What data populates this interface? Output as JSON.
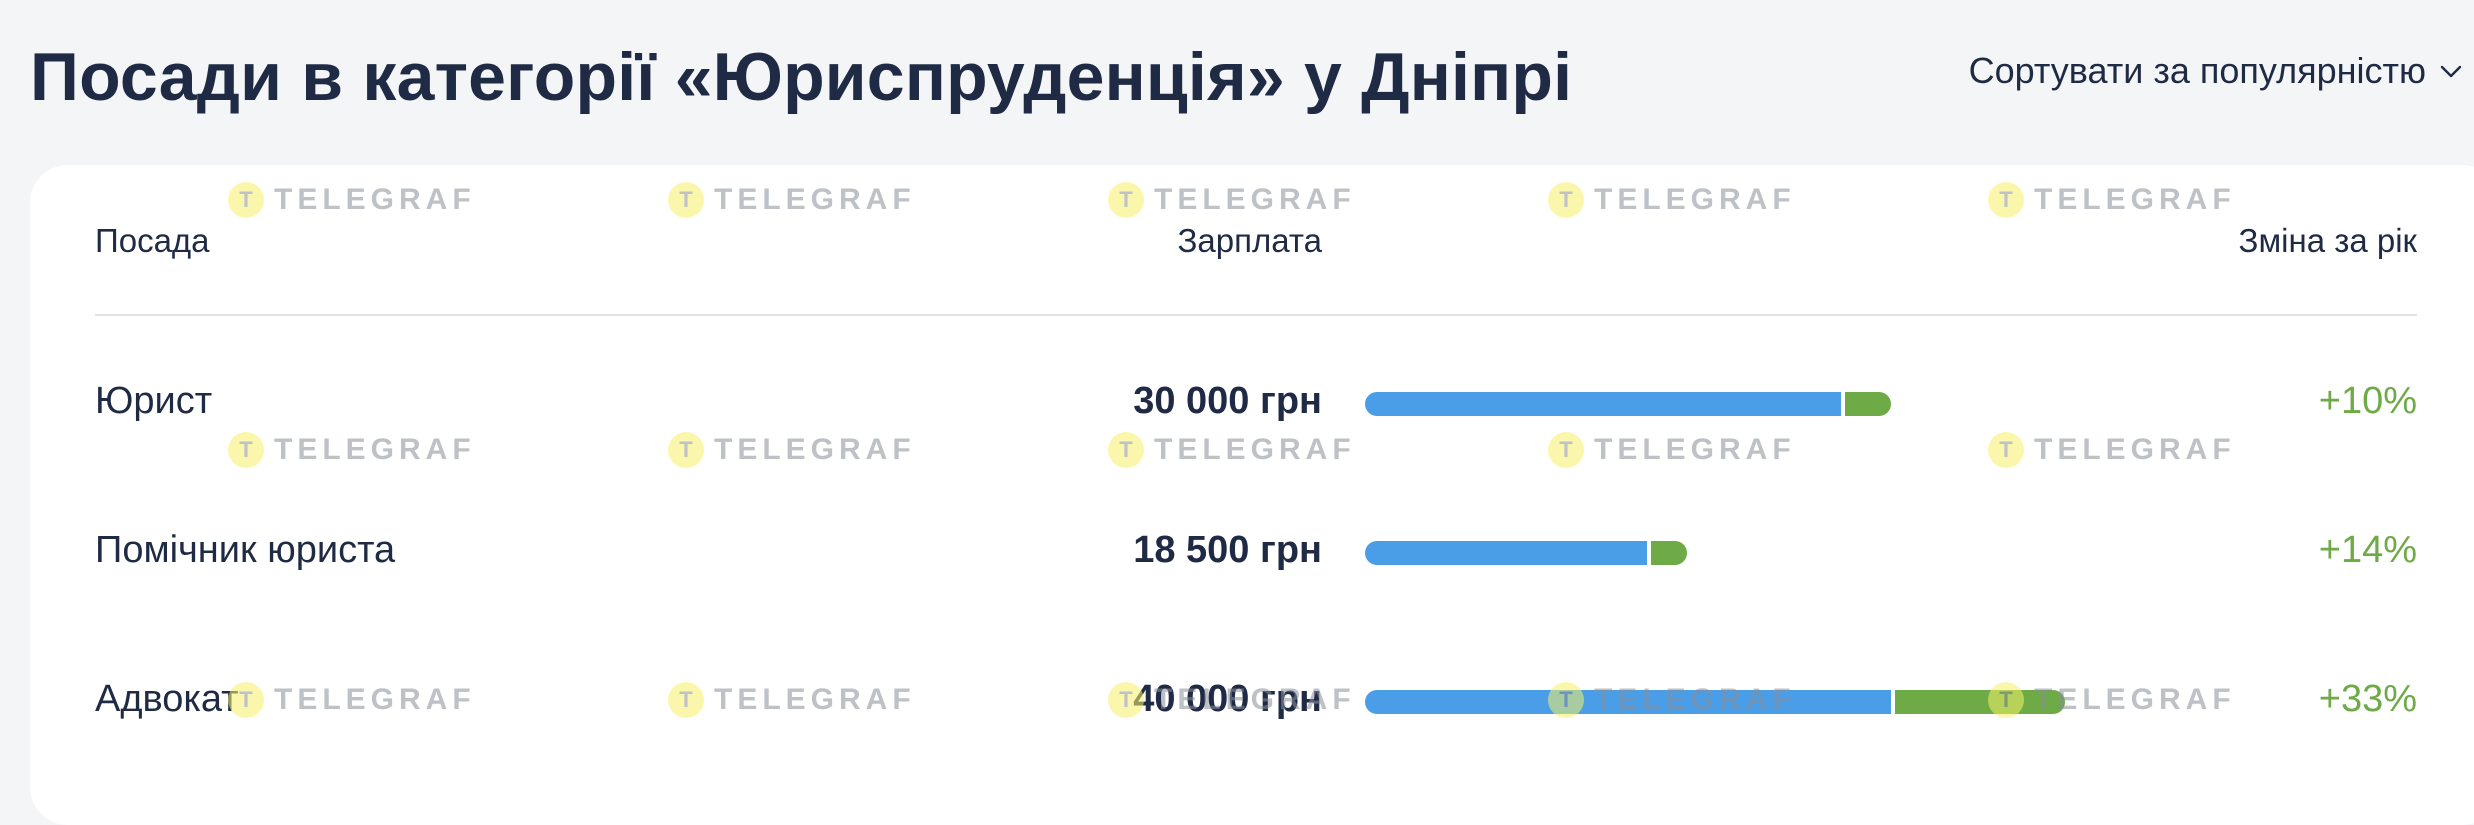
{
  "page": {
    "title": "Посади в категорії «Юриспруденція» у Дніпрі"
  },
  "sort": {
    "label": "Сортувати за популярністю",
    "icon": "chevron-down-icon"
  },
  "table": {
    "headers": {
      "position": "Посада",
      "salary": "Зарплата",
      "change": "Зміна за рік"
    },
    "rows": [
      {
        "title": "Юрист",
        "salary": "30 000 грн",
        "change": "+10%"
      },
      {
        "title": "Помічник юриста",
        "salary": "18 500 грн",
        "change": "+14%"
      },
      {
        "title": "Адвокат",
        "salary": "40 000 грн",
        "change": "+33%"
      }
    ]
  },
  "colors": {
    "bar_base": "#4a9ee8",
    "bar_growth": "#6eaa46",
    "change_text": "#6eaa46",
    "title_text": "#1f2a44"
  },
  "watermark": {
    "text": "TELEGRAF"
  }
}
